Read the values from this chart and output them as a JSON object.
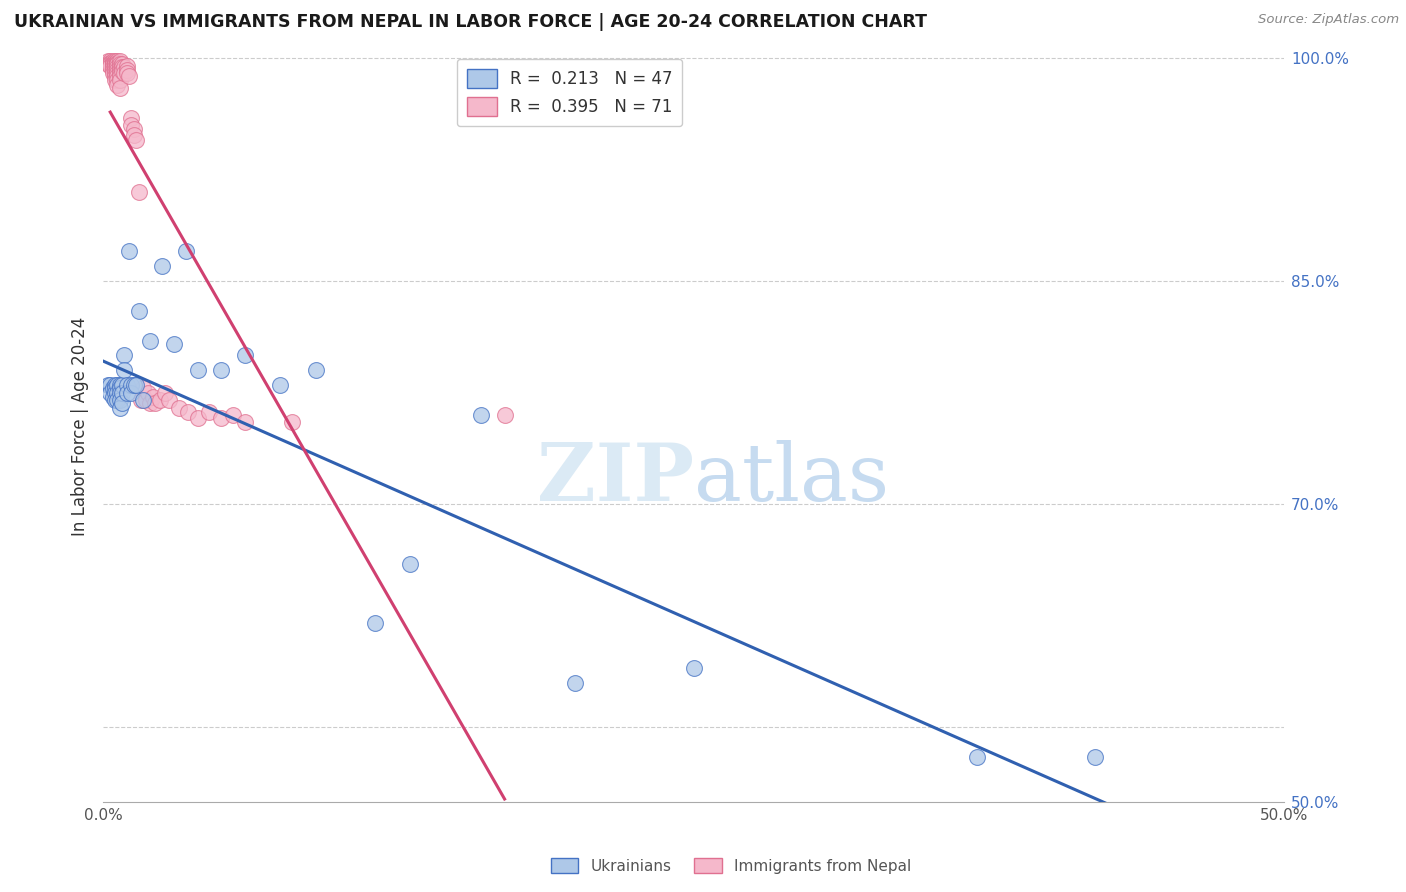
{
  "title": "UKRAINIAN VS IMMIGRANTS FROM NEPAL IN LABOR FORCE | AGE 20-24 CORRELATION CHART",
  "source": "Source: ZipAtlas.com",
  "ylabel": "In Labor Force | Age 20-24",
  "xmin": 0.0,
  "xmax": 0.5,
  "ymin": 0.5,
  "ymax": 1.005,
  "xtick_positions": [
    0.0,
    0.1,
    0.2,
    0.3,
    0.4,
    0.5
  ],
  "xtick_labels": [
    "0.0%",
    "",
    "",
    "",
    "",
    "50.0%"
  ],
  "ytick_positions": [
    0.5,
    0.55,
    0.6,
    0.65,
    0.7,
    0.75,
    0.8,
    0.85,
    0.9,
    0.95,
    1.0
  ],
  "ytick_labels": [
    "50.0%",
    "",
    "",
    "",
    "70.0%",
    "",
    "",
    "85.0%",
    "",
    "",
    "100.0%"
  ],
  "blue_R": 0.213,
  "blue_N": 47,
  "pink_R": 0.395,
  "pink_N": 71,
  "blue_fill": "#aec8e8",
  "pink_fill": "#f5b8cb",
  "blue_edge": "#4472C4",
  "pink_edge": "#e07090",
  "blue_line_color": "#3060b0",
  "pink_line_color": "#d04070",
  "watermark_zip": "ZIP",
  "watermark_atlas": "atlas",
  "legend_label_blue": "Ukrainians",
  "legend_label_pink": "Immigrants from Nepal",
  "blue_x": [
    0.002,
    0.003,
    0.003,
    0.004,
    0.004,
    0.005,
    0.005,
    0.005,
    0.005,
    0.006,
    0.006,
    0.006,
    0.007,
    0.007,
    0.007,
    0.007,
    0.007,
    0.008,
    0.008,
    0.008,
    0.009,
    0.009,
    0.01,
    0.01,
    0.011,
    0.012,
    0.012,
    0.013,
    0.014,
    0.015,
    0.017,
    0.02,
    0.025,
    0.03,
    0.035,
    0.04,
    0.05,
    0.06,
    0.075,
    0.09,
    0.115,
    0.13,
    0.16,
    0.2,
    0.25,
    0.37,
    0.42
  ],
  "blue_y": [
    0.78,
    0.78,
    0.775,
    0.778,
    0.772,
    0.78,
    0.778,
    0.775,
    0.77,
    0.78,
    0.775,
    0.77,
    0.78,
    0.778,
    0.775,
    0.77,
    0.765,
    0.78,
    0.775,
    0.768,
    0.8,
    0.79,
    0.78,
    0.775,
    0.87,
    0.78,
    0.775,
    0.78,
    0.78,
    0.83,
    0.77,
    0.81,
    0.86,
    0.808,
    0.87,
    0.79,
    0.79,
    0.8,
    0.78,
    0.79,
    0.62,
    0.66,
    0.76,
    0.58,
    0.59,
    0.53,
    0.53
  ],
  "pink_x": [
    0.002,
    0.002,
    0.003,
    0.003,
    0.003,
    0.003,
    0.004,
    0.004,
    0.004,
    0.004,
    0.004,
    0.004,
    0.005,
    0.005,
    0.005,
    0.005,
    0.005,
    0.005,
    0.005,
    0.005,
    0.006,
    0.006,
    0.006,
    0.006,
    0.006,
    0.006,
    0.006,
    0.006,
    0.006,
    0.007,
    0.007,
    0.007,
    0.007,
    0.007,
    0.007,
    0.007,
    0.007,
    0.008,
    0.008,
    0.008,
    0.009,
    0.009,
    0.01,
    0.01,
    0.01,
    0.011,
    0.012,
    0.012,
    0.013,
    0.013,
    0.014,
    0.015,
    0.016,
    0.017,
    0.018,
    0.019,
    0.02,
    0.021,
    0.022,
    0.024,
    0.026,
    0.028,
    0.032,
    0.036,
    0.04,
    0.045,
    0.05,
    0.055,
    0.06,
    0.08,
    0.17
  ],
  "pink_y": [
    0.998,
    0.996,
    0.998,
    0.997,
    0.996,
    0.995,
    0.998,
    0.997,
    0.996,
    0.994,
    0.992,
    0.99,
    0.998,
    0.997,
    0.996,
    0.994,
    0.992,
    0.99,
    0.988,
    0.985,
    0.998,
    0.997,
    0.996,
    0.994,
    0.992,
    0.99,
    0.988,
    0.985,
    0.982,
    0.998,
    0.996,
    0.994,
    0.992,
    0.99,
    0.988,
    0.985,
    0.98,
    0.996,
    0.994,
    0.991,
    0.994,
    0.99,
    0.995,
    0.992,
    0.99,
    0.988,
    0.96,
    0.955,
    0.952,
    0.948,
    0.945,
    0.91,
    0.77,
    0.778,
    0.77,
    0.775,
    0.768,
    0.772,
    0.768,
    0.77,
    0.775,
    0.77,
    0.765,
    0.762,
    0.758,
    0.762,
    0.758,
    0.76,
    0.755,
    0.755,
    0.76
  ]
}
